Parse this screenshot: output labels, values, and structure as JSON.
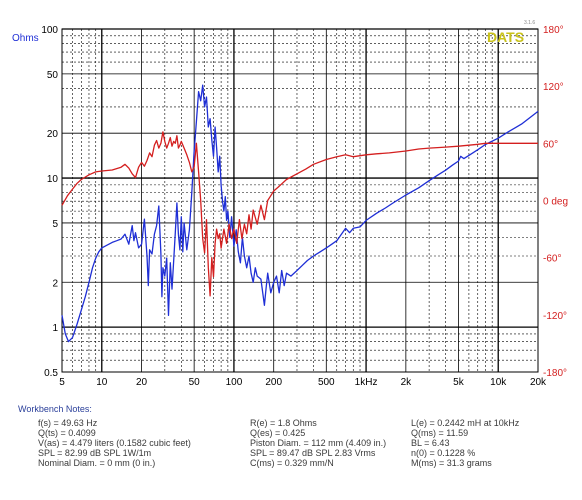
{
  "chart_data": {
    "type": "line",
    "brand": "DATS",
    "brand_version": "3.1.6",
    "left_axis_label": "Ohms",
    "x_scale": "log",
    "y_scale": "log",
    "xlim": [
      5,
      20000
    ],
    "ylim": [
      0.5,
      100
    ],
    "phase_lim": [
      -180,
      180
    ],
    "x_ticks": [
      {
        "value": 5,
        "label": "5"
      },
      {
        "value": 10,
        "label": "10"
      },
      {
        "value": 20,
        "label": "20"
      },
      {
        "value": 50,
        "label": "50"
      },
      {
        "value": 100,
        "label": "100"
      },
      {
        "value": 200,
        "label": "200"
      },
      {
        "value": 500,
        "label": "500"
      },
      {
        "value": 1000,
        "label": "1kHz"
      },
      {
        "value": 2000,
        "label": "2k"
      },
      {
        "value": 5000,
        "label": "5k"
      },
      {
        "value": 10000,
        "label": "10k"
      },
      {
        "value": 20000,
        "label": "20k"
      }
    ],
    "y_ticks_left": [
      {
        "value": 100,
        "label": "100"
      },
      {
        "value": 50,
        "label": "50"
      },
      {
        "value": 20,
        "label": "20"
      },
      {
        "value": 10,
        "label": "10"
      },
      {
        "value": 5,
        "label": "5"
      },
      {
        "value": 2,
        "label": "2"
      },
      {
        "value": 1,
        "label": "1"
      },
      {
        "value": 0.5,
        "label": "0.5"
      }
    ],
    "y_ticks_right": [
      {
        "value": 180,
        "label": "180°"
      },
      {
        "value": 120,
        "label": "120°"
      },
      {
        "value": 60,
        "label": "60°"
      },
      {
        "value": 0,
        "label": "0 deg"
      },
      {
        "value": -60,
        "label": "-60°"
      },
      {
        "value": -120,
        "label": "-120°"
      },
      {
        "value": -180,
        "label": "-180°"
      }
    ],
    "series": [
      {
        "axis": "left",
        "color": "#1f2fd6",
        "points": [
          [
            5,
            1.2
          ],
          [
            5.3,
            0.9
          ],
          [
            5.6,
            0.8
          ],
          [
            6,
            0.85
          ],
          [
            6.5,
            1.05
          ],
          [
            7,
            1.3
          ],
          [
            7.5,
            1.6
          ],
          [
            8,
            2.0
          ],
          [
            8.5,
            2.5
          ],
          [
            9,
            2.9
          ],
          [
            9.5,
            3.2
          ],
          [
            10,
            3.4
          ],
          [
            11,
            3.55
          ],
          [
            12,
            3.7
          ],
          [
            13,
            3.8
          ],
          [
            14,
            3.9
          ],
          [
            15,
            4.2
          ],
          [
            16,
            3.6
          ],
          [
            17,
            4.8
          ],
          [
            17.5,
            3.8
          ],
          [
            18,
            4.3
          ],
          [
            19,
            3.4
          ],
          [
            20,
            3.6
          ],
          [
            21,
            5.3
          ],
          [
            22,
            3.0
          ],
          [
            22.5,
            1.9
          ],
          [
            23,
            3.3
          ],
          [
            24,
            3.1
          ],
          [
            25,
            4.2
          ],
          [
            26,
            4.8
          ],
          [
            27,
            6.5
          ],
          [
            28,
            3.1
          ],
          [
            28.5,
            1.6
          ],
          [
            29,
            2.5
          ],
          [
            30,
            2.2
          ],
          [
            31,
            2.9
          ],
          [
            32,
            1.2
          ],
          [
            33,
            2.7
          ],
          [
            34,
            1.8
          ],
          [
            35,
            2.8
          ],
          [
            36,
            4.3
          ],
          [
            37,
            6.8
          ],
          [
            38,
            4.2
          ],
          [
            39,
            3.3
          ],
          [
            40,
            5.5
          ],
          [
            41,
            3.2
          ],
          [
            42,
            5.0
          ],
          [
            44,
            3.3
          ],
          [
            46,
            4.5
          ],
          [
            48,
            8.0
          ],
          [
            50,
            15.0
          ],
          [
            52,
            24.0
          ],
          [
            54,
            38.0
          ],
          [
            56,
            33.0
          ],
          [
            58,
            42.0
          ],
          [
            60,
            30.0
          ],
          [
            62,
            35.0
          ],
          [
            64,
            22.0
          ],
          [
            66,
            25.0
          ],
          [
            68,
            18.0
          ],
          [
            70,
            14.0
          ],
          [
            72,
            22.0
          ],
          [
            74,
            16.0
          ],
          [
            76,
            11.0
          ],
          [
            78,
            14.0
          ],
          [
            80,
            9.0
          ],
          [
            82,
            7.0
          ],
          [
            84,
            6.0
          ],
          [
            86,
            7.5
          ],
          [
            88,
            5.2
          ],
          [
            90,
            6.0
          ],
          [
            93,
            4.0
          ],
          [
            96,
            5.5
          ],
          [
            100,
            3.5
          ],
          [
            104,
            4.5
          ],
          [
            108,
            3.2
          ],
          [
            112,
            2.7
          ],
          [
            116,
            4.0
          ],
          [
            120,
            3.0
          ],
          [
            125,
            2.5
          ],
          [
            130,
            3.0
          ],
          [
            135,
            2.3
          ],
          [
            140,
            2.0
          ],
          [
            145,
            2.5
          ],
          [
            150,
            2.2
          ],
          [
            160,
            2.1
          ],
          [
            170,
            1.4
          ],
          [
            175,
            1.8
          ],
          [
            180,
            2.3
          ],
          [
            190,
            1.7
          ],
          [
            200,
            2.0
          ],
          [
            210,
            2.2
          ],
          [
            220,
            1.7
          ],
          [
            230,
            2.4
          ],
          [
            240,
            1.9
          ],
          [
            250,
            2.3
          ],
          [
            270,
            2.2
          ],
          [
            300,
            2.4
          ],
          [
            330,
            2.6
          ],
          [
            360,
            2.8
          ],
          [
            400,
            3.0
          ],
          [
            450,
            3.2
          ],
          [
            500,
            3.4
          ],
          [
            550,
            3.6
          ],
          [
            600,
            3.8
          ],
          [
            650,
            4.2
          ],
          [
            700,
            4.6
          ],
          [
            750,
            4.3
          ],
          [
            800,
            4.6
          ],
          [
            900,
            4.7
          ],
          [
            1000,
            5.2
          ],
          [
            1200,
            5.8
          ],
          [
            1400,
            6.3
          ],
          [
            1600,
            6.8
          ],
          [
            2000,
            7.7
          ],
          [
            2500,
            8.6
          ],
          [
            3000,
            9.6
          ],
          [
            3500,
            10.5
          ],
          [
            4000,
            11.3
          ],
          [
            4500,
            12.2
          ],
          [
            5000,
            13.0
          ],
          [
            5200,
            14.0
          ],
          [
            5500,
            13.5
          ],
          [
            6000,
            14.2
          ],
          [
            7000,
            15.5
          ],
          [
            8000,
            16.8
          ],
          [
            10000,
            18.5
          ],
          [
            12000,
            20.5
          ],
          [
            15000,
            23.0
          ],
          [
            20000,
            28.0
          ]
        ]
      },
      {
        "axis": "right",
        "color": "#d41f1f",
        "points": [
          [
            5,
            -5
          ],
          [
            5.5,
            5
          ],
          [
            6,
            12
          ],
          [
            6.5,
            18
          ],
          [
            7,
            22
          ],
          [
            8,
            27
          ],
          [
            9,
            30
          ],
          [
            10,
            31
          ],
          [
            12,
            32
          ],
          [
            14,
            35
          ],
          [
            15,
            38
          ],
          [
            16,
            34
          ],
          [
            17,
            28
          ],
          [
            18,
            24
          ],
          [
            19,
            35
          ],
          [
            20,
            40
          ],
          [
            21,
            36
          ],
          [
            22,
            42
          ],
          [
            23,
            50
          ],
          [
            24,
            46
          ],
          [
            25,
            58
          ],
          [
            26,
            63
          ],
          [
            27,
            55
          ],
          [
            28,
            60
          ],
          [
            29,
            72
          ],
          [
            30,
            62
          ],
          [
            31,
            55
          ],
          [
            32,
            60
          ],
          [
            33,
            66
          ],
          [
            34,
            57
          ],
          [
            35,
            62
          ],
          [
            36,
            60
          ],
          [
            37,
            68
          ],
          [
            38,
            55
          ],
          [
            39,
            58
          ],
          [
            40,
            62
          ],
          [
            42,
            55
          ],
          [
            44,
            48
          ],
          [
            46,
            40
          ],
          [
            48,
            30
          ],
          [
            50,
            35
          ],
          [
            52,
            60
          ],
          [
            54,
            30
          ],
          [
            56,
            0
          ],
          [
            58,
            -40
          ],
          [
            60,
            -55
          ],
          [
            62,
            -20
          ],
          [
            64,
            -70
          ],
          [
            66,
            -100
          ],
          [
            68,
            -60
          ],
          [
            70,
            -80
          ],
          [
            72,
            -45
          ],
          [
            74,
            -30
          ],
          [
            76,
            -40
          ],
          [
            78,
            -35
          ],
          [
            80,
            -50
          ],
          [
            84,
            -30
          ],
          [
            88,
            -45
          ],
          [
            92,
            -25
          ],
          [
            96,
            -40
          ],
          [
            100,
            -30
          ],
          [
            105,
            -45
          ],
          [
            110,
            -20
          ],
          [
            115,
            -40
          ],
          [
            120,
            -25
          ],
          [
            125,
            -35
          ],
          [
            130,
            -15
          ],
          [
            135,
            -30
          ],
          [
            140,
            -10
          ],
          [
            150,
            -25
          ],
          [
            160,
            -5
          ],
          [
            170,
            -20
          ],
          [
            180,
            0
          ],
          [
            190,
            5
          ],
          [
            200,
            10
          ],
          [
            220,
            15
          ],
          [
            250,
            22
          ],
          [
            300,
            28
          ],
          [
            350,
            33
          ],
          [
            400,
            38
          ],
          [
            500,
            43
          ],
          [
            600,
            46
          ],
          [
            700,
            48
          ],
          [
            800,
            46
          ],
          [
            1000,
            48
          ],
          [
            1200,
            49
          ],
          [
            1500,
            50
          ],
          [
            2000,
            52
          ],
          [
            2500,
            54
          ],
          [
            3000,
            55
          ],
          [
            4000,
            56
          ],
          [
            5000,
            57
          ],
          [
            6000,
            58
          ],
          [
            7000,
            59
          ],
          [
            8000,
            60
          ],
          [
            10000,
            60
          ],
          [
            15000,
            60
          ],
          [
            20000,
            60
          ]
        ]
      }
    ]
  },
  "notes": {
    "title": "Workbench Notes:",
    "col1": [
      "f(s) = 49.63 Hz",
      "Q(ts) = 0.4099",
      "V(as) = 4.479 liters  (0.1582 cubic feet)",
      "SPL = 82.99 dB SPL 1W/1m",
      "Nominal Diam. = 0 mm (0 in.)"
    ],
    "col2": [
      "R(e) = 1.8 Ohms",
      "Q(es) = 0.425",
      "Piston Diam. = 112 mm (4.409 in.)",
      "SPL = 89.47 dB SPL 2.83 Vrms",
      "C(ms) = 0.329 mm/N"
    ],
    "col3": [
      "L(e) = 0.2442 mH at 10kHz",
      "Q(ms) = 11.59",
      "BL = 6.43",
      "n(0) = 0.1228 %",
      "M(ms) = 31.3 grams"
    ]
  }
}
